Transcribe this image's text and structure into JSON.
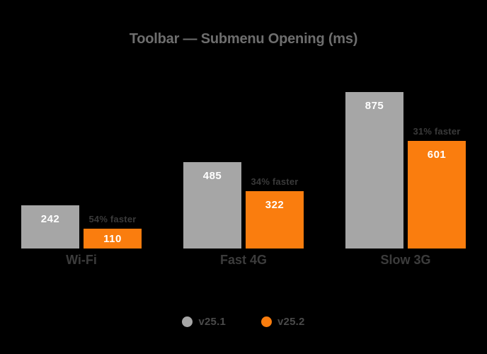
{
  "title": "Toolbar — Submenu Opening (ms)",
  "chart_data": {
    "type": "bar",
    "title": "Toolbar — Submenu Opening (ms)",
    "unit": "ms",
    "categories": [
      "Wi-Fi",
      "Fast 4G",
      "Slow 3G"
    ],
    "series": [
      {
        "name": "v25.1",
        "color": "#A6A6A6",
        "values": [
          242,
          485,
          875
        ]
      },
      {
        "name": "v25.2",
        "color": "#FA7D0E",
        "values": [
          110,
          322,
          601
        ]
      }
    ],
    "annotations": [
      "54% faster",
      "34% faster",
      "31% faster"
    ],
    "value_labels": "inside-top",
    "ylim": [
      0,
      875
    ],
    "grid": false,
    "axes_visible": false,
    "legend_position": "bottom"
  },
  "colors": {
    "background": "#000000",
    "title_text": "#6E6E6E",
    "category_text": "#3C3C3C",
    "annotation_text": "#3A3A3A",
    "value_text": "#FFFFFF",
    "legend_text": "#4A4A4A"
  }
}
